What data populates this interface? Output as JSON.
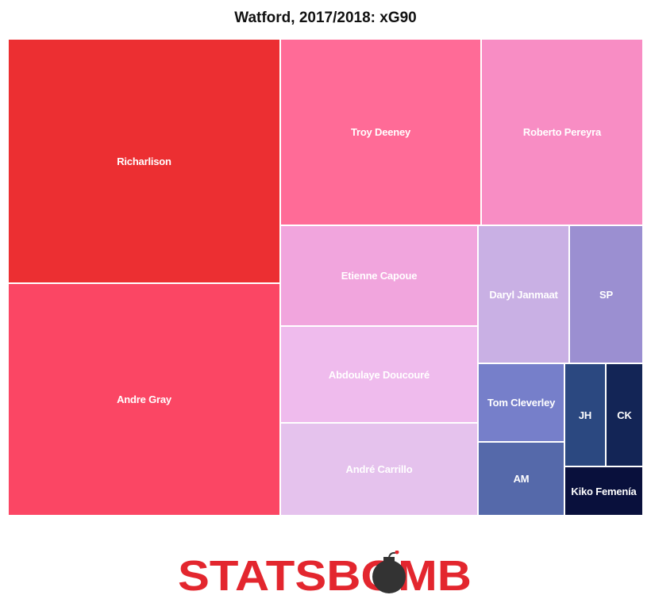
{
  "chart_data": {
    "type": "treemap",
    "title": "Watford, 2017/2018: xG90",
    "items": [
      {
        "label": "Richarlison",
        "color": "#ec2f32"
      },
      {
        "label": "Andre Gray",
        "color": "#fb4664"
      },
      {
        "label": "Troy Deeney",
        "color": "#ff6b97"
      },
      {
        "label": "Roberto Pereyra",
        "color": "#f88dc4"
      },
      {
        "label": "Etienne Capoue",
        "color": "#f1a5dd"
      },
      {
        "label": "Abdoulaye Doucouré",
        "color": "#efbbed"
      },
      {
        "label": "André Carrillo",
        "color": "#e5c2ed"
      },
      {
        "label": "Daryl Janmaat",
        "color": "#c9b0e4"
      },
      {
        "label": "SP",
        "color": "#9b8fd1"
      },
      {
        "label": "Tom Cleverley",
        "color": "#767fca"
      },
      {
        "label": "AM",
        "color": "#5569aa"
      },
      {
        "label": "JH",
        "color": "#2b4880"
      },
      {
        "label": "CK",
        "color": "#132556"
      },
      {
        "label": "Kiko Femenía",
        "color": "#09103c"
      }
    ]
  },
  "logo": {
    "text": "STATSBOMB",
    "text_color": "#e3262e",
    "bomb_color": "#333333"
  }
}
